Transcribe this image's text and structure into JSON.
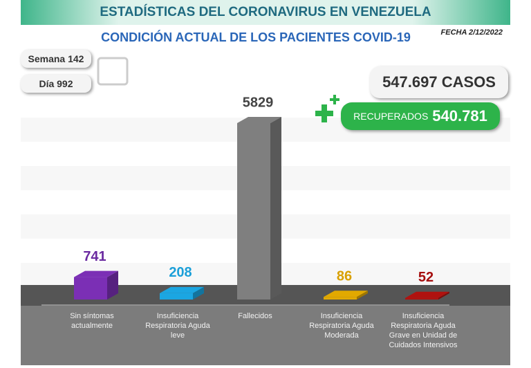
{
  "chart_data": {
    "type": "bar",
    "title": "ESTADÍSTICAS DEL CORONAVIRUS EN VENEZUELA",
    "subtitle": "CONDICIÓN ACTUAL DE LOS PACIENTES COVID-19",
    "date": "FECHA 2/12/2022",
    "week": "Semana 142",
    "day": "Día 992",
    "cases": "547.697 CASOS",
    "recovered_label": "RECUPERADOS",
    "recovered_value": "540.781",
    "categories": [
      "Sin síntomas actualmente",
      "Insuficiencia Respiratoria Aguda leve",
      "Fallecidos",
      "Insuficiencia Respiratoria Aguda Moderada",
      "Insuficiencia Respiratoria Aguda Grave en Unidad de Cuidados Intensivos"
    ],
    "values": [
      741,
      208,
      5829,
      86,
      52
    ],
    "colors": [
      "#7b2fb5",
      "#1ba6e2",
      "#7f7f7f",
      "#e2a900",
      "#b0120f"
    ],
    "label_colors": [
      "#6a2aa0",
      "#1b9fd8",
      "#444444",
      "#d9a000",
      "#a50e0e"
    ]
  }
}
